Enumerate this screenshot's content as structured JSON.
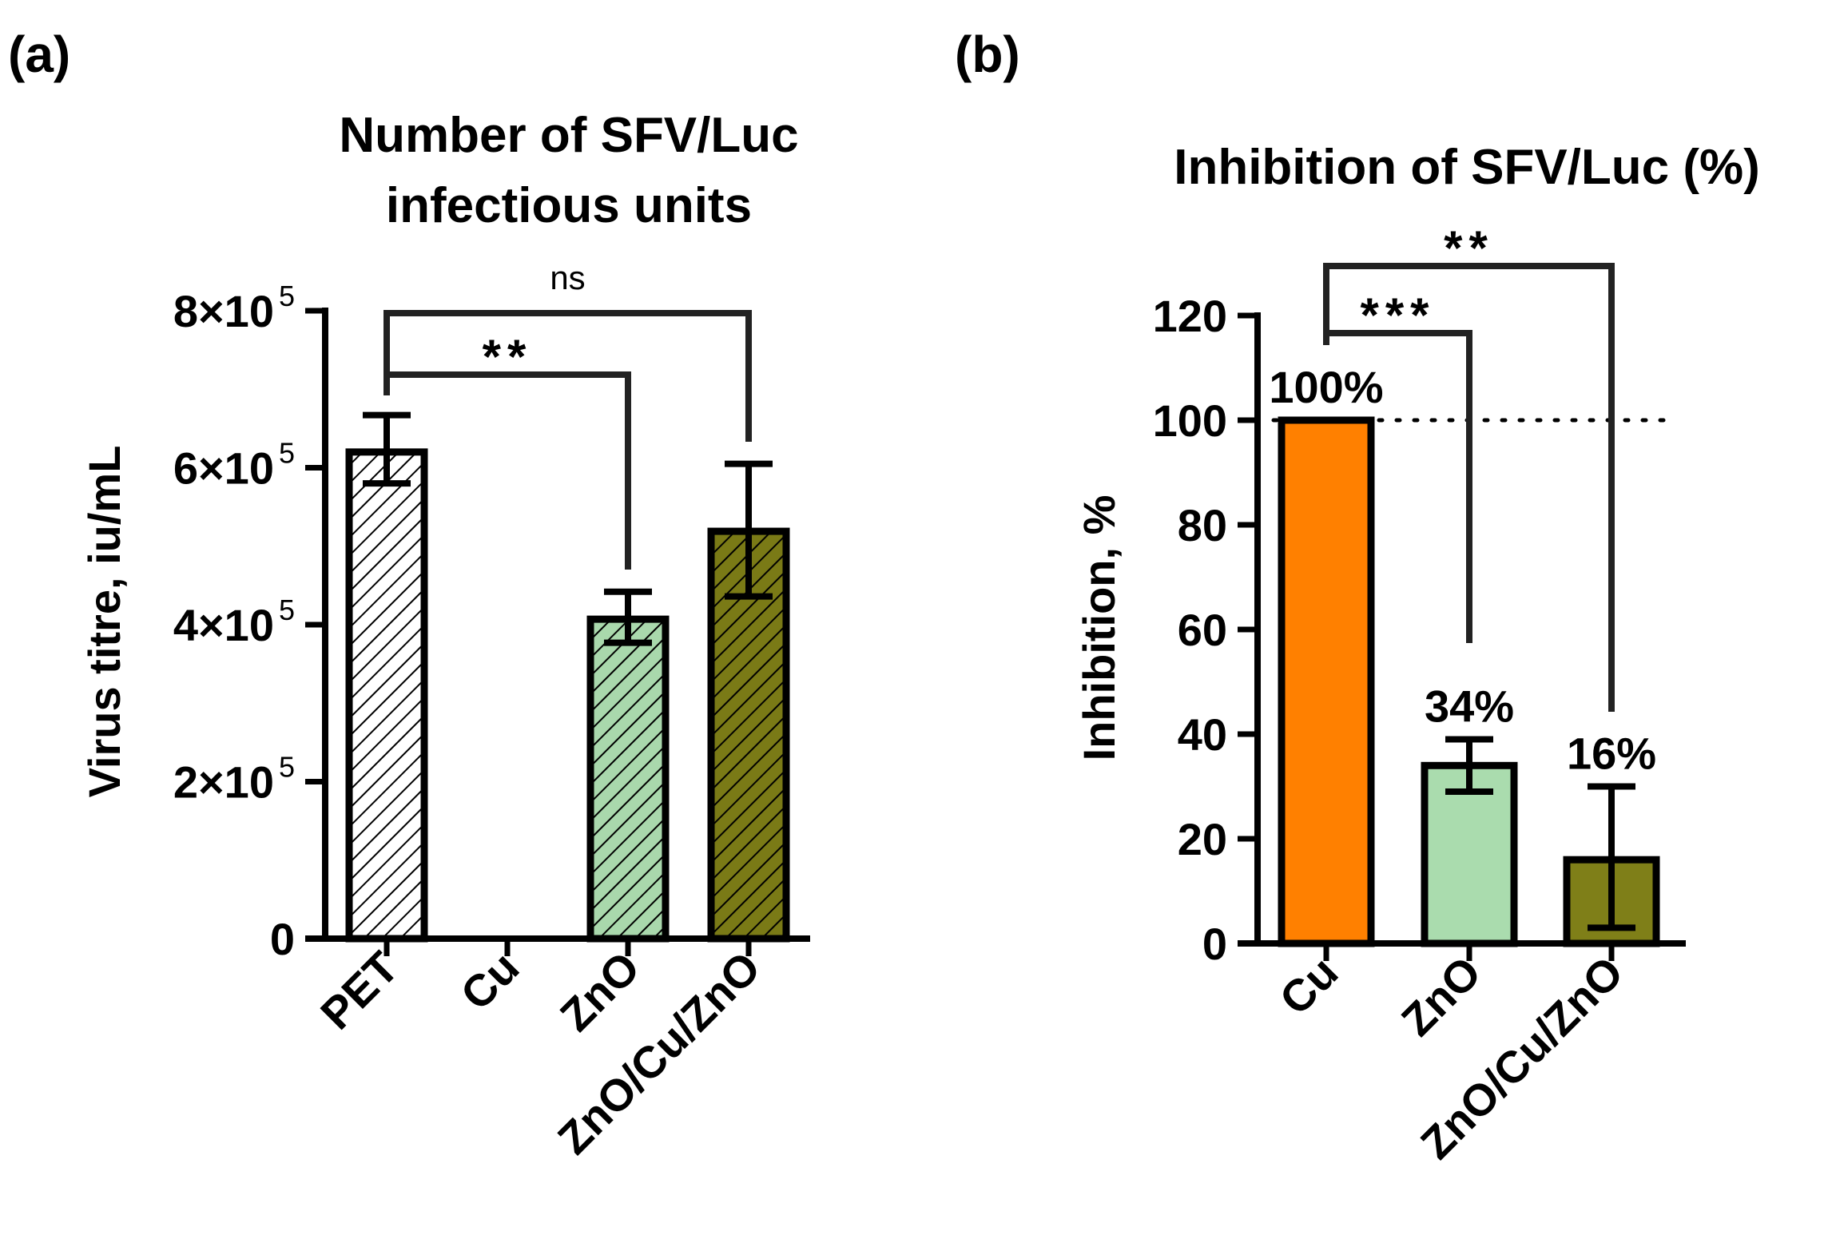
{
  "chart_data": [
    {
      "panel_label": "(a)",
      "type": "bar",
      "title_lines": [
        "Number of SFV/Luc",
        "infectious units"
      ],
      "xlabel": "",
      "ylabel": "Virus titre, iu/mL",
      "ylim": [
        0,
        800000
      ],
      "yticks": [
        {
          "value": 0,
          "mantissa": "0",
          "exp": ""
        },
        {
          "value": 200000,
          "mantissa": "2×10",
          "exp": "5"
        },
        {
          "value": 400000,
          "mantissa": "4×10",
          "exp": "5"
        },
        {
          "value": 600000,
          "mantissa": "6×10",
          "exp": "5"
        },
        {
          "value": 800000,
          "mantissa": "8×10",
          "exp": "5"
        }
      ],
      "categories": [
        "PET",
        "Cu",
        "ZnO",
        "ZnO/Cu/ZnO"
      ],
      "values": [
        620000,
        0,
        407000,
        519000
      ],
      "error_low": [
        580000,
        null,
        377000,
        436000
      ],
      "error_high": [
        667000,
        null,
        442000,
        605000
      ],
      "colors": [
        "#ffffff",
        "#ffffff",
        "#a9d8ac",
        "#7a7a16"
      ],
      "hatched": [
        true,
        false,
        true,
        true
      ],
      "significance": [
        {
          "from": 0,
          "to": 2,
          "label": "**"
        },
        {
          "from": 0,
          "to": 3,
          "label": "ns"
        }
      ],
      "grid": false
    },
    {
      "panel_label": "(b)",
      "type": "bar",
      "title_lines": [
        "Inhibition of SFV/Luc (%)"
      ],
      "xlabel": "",
      "ylabel": "Inhibition, %",
      "ylim": [
        0,
        120
      ],
      "yticks": [
        {
          "value": 0,
          "mantissa": "0",
          "exp": ""
        },
        {
          "value": 20,
          "mantissa": "20",
          "exp": ""
        },
        {
          "value": 40,
          "mantissa": "40",
          "exp": ""
        },
        {
          "value": 60,
          "mantissa": "60",
          "exp": ""
        },
        {
          "value": 80,
          "mantissa": "80",
          "exp": ""
        },
        {
          "value": 100,
          "mantissa": "100",
          "exp": ""
        },
        {
          "value": 120,
          "mantissa": "120",
          "exp": ""
        }
      ],
      "categories": [
        "Cu",
        "ZnO",
        "ZnO/Cu/ZnO"
      ],
      "values": [
        100,
        34,
        16
      ],
      "error_low": [
        null,
        29,
        3
      ],
      "error_high": [
        null,
        39,
        30
      ],
      "data_labels": [
        "100%",
        "34%",
        "16%"
      ],
      "colors": [
        "#ff8000",
        "#aadcae",
        "#7f7f18"
      ],
      "hatched": [
        false,
        false,
        false
      ],
      "reference_line": 100,
      "significance": [
        {
          "from": 0,
          "to": 1,
          "label": "***"
        },
        {
          "from": 0,
          "to": 2,
          "label": "**"
        }
      ],
      "grid": false
    }
  ]
}
